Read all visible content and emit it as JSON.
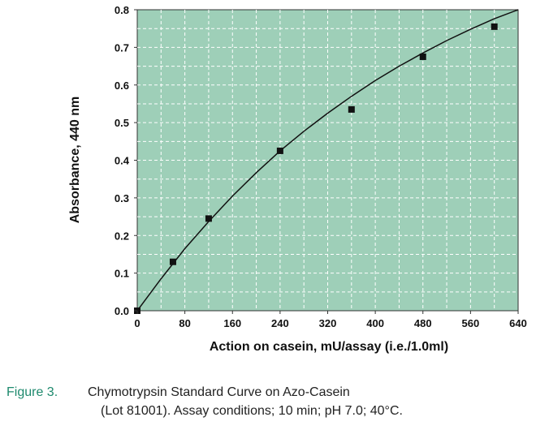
{
  "chart_data": {
    "type": "scatter",
    "title": "",
    "xlabel": "Action on casein, mU/assay (i.e./1.0ml)",
    "ylabel": "Absorbance, 440 nm",
    "xlim": [
      0,
      640
    ],
    "ylim": [
      0,
      0.8
    ],
    "x_ticks": [
      "0",
      "80",
      "160",
      "240",
      "320",
      "400",
      "480",
      "560",
      "640"
    ],
    "y_ticks": [
      "0.0",
      "0.1",
      "0.2",
      "0.3",
      "0.4",
      "0.5",
      "0.6",
      "0.7",
      "0.8"
    ],
    "grid": true,
    "background_color": "#9ecfb8",
    "grid_color": "#ffffff",
    "marker_color": "#111111",
    "points": [
      {
        "x": 0,
        "y": 0.0
      },
      {
        "x": 60,
        "y": 0.13
      },
      {
        "x": 120,
        "y": 0.245
      },
      {
        "x": 240,
        "y": 0.425
      },
      {
        "x": 360,
        "y": 0.535
      },
      {
        "x": 480,
        "y": 0.675
      },
      {
        "x": 600,
        "y": 0.755
      }
    ],
    "fit_curve": [
      {
        "x": 0,
        "y": 0.0
      },
      {
        "x": 40,
        "y": 0.085
      },
      {
        "x": 80,
        "y": 0.165
      },
      {
        "x": 120,
        "y": 0.237
      },
      {
        "x": 160,
        "y": 0.305
      },
      {
        "x": 200,
        "y": 0.367
      },
      {
        "x": 240,
        "y": 0.425
      },
      {
        "x": 280,
        "y": 0.477
      },
      {
        "x": 320,
        "y": 0.525
      },
      {
        "x": 360,
        "y": 0.57
      },
      {
        "x": 400,
        "y": 0.612
      },
      {
        "x": 440,
        "y": 0.65
      },
      {
        "x": 480,
        "y": 0.685
      },
      {
        "x": 520,
        "y": 0.718
      },
      {
        "x": 560,
        "y": 0.748
      },
      {
        "x": 600,
        "y": 0.776
      },
      {
        "x": 640,
        "y": 0.8
      }
    ]
  },
  "caption": {
    "label": "Figure 3.",
    "line1": "Chymotrypsin  Standard Curve on Azo-Casein",
    "line2": "(Lot 81001). Assay conditions; 10 min; pH 7.0; 40°C."
  }
}
